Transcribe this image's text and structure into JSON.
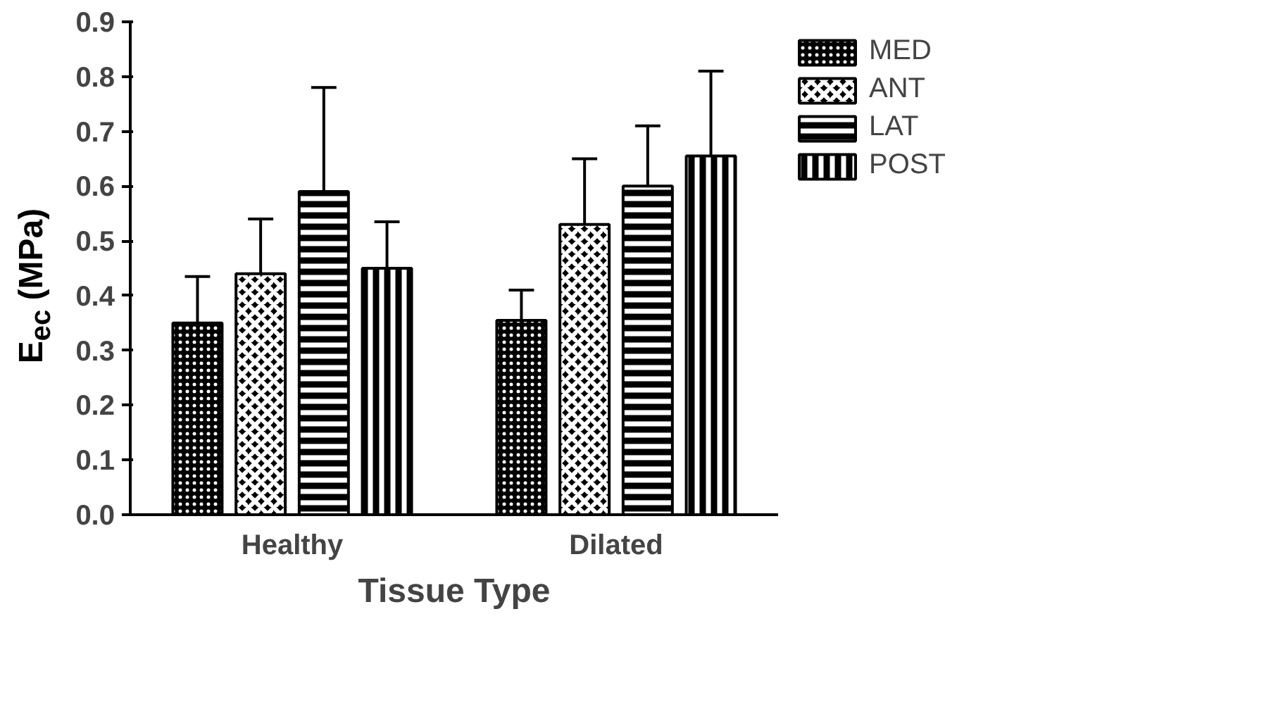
{
  "chart_data": {
    "type": "bar",
    "xlabel": "Tissue Type",
    "ylabel": "E$_{ec}$ (MPa)",
    "categories": [
      "Healthy",
      "Dilated"
    ],
    "series": [
      {
        "name": "MED",
        "color": "#000000",
        "values": [
          0.35,
          0.355
        ],
        "errors": [
          [
            0.35,
            0.435
          ],
          [
            0.355,
            0.41
          ]
        ]
      },
      {
        "name": "ANT",
        "color": "#000000",
        "values": [
          0.44,
          0.53
        ],
        "errors": [
          [
            0.44,
            0.54
          ],
          [
            0.53,
            0.65
          ]
        ]
      },
      {
        "name": "LAT",
        "color": "#000000",
        "values": [
          0.59,
          0.6
        ],
        "errors": [
          [
            0.59,
            0.78
          ],
          [
            0.6,
            0.71
          ]
        ]
      },
      {
        "name": "POST",
        "color": "#000000",
        "values": [
          0.45,
          0.655
        ],
        "errors": [
          [
            0.45,
            0.535
          ],
          [
            0.655,
            0.81
          ]
        ]
      }
    ],
    "ylim": [
      0,
      0.9
    ],
    "yticks": [
      {
        "value": 0,
        "label": "0.0"
      },
      {
        "value": 0.1,
        "label": "0.1"
      },
      {
        "value": 0.2,
        "label": "0.2"
      },
      {
        "value": 0.3,
        "label": "0.3"
      },
      {
        "value": 0.4,
        "label": "0.4"
      },
      {
        "value": 0.5,
        "label": "0.5"
      },
      {
        "value": 0.6,
        "label": "0.6"
      },
      {
        "value": 0.7,
        "label": "0.7"
      },
      {
        "value": 0.8,
        "label": "0.8"
      },
      {
        "value": 0.9,
        "label": "0.9"
      }
    ],
    "grid": false,
    "legend": "top right"
  }
}
